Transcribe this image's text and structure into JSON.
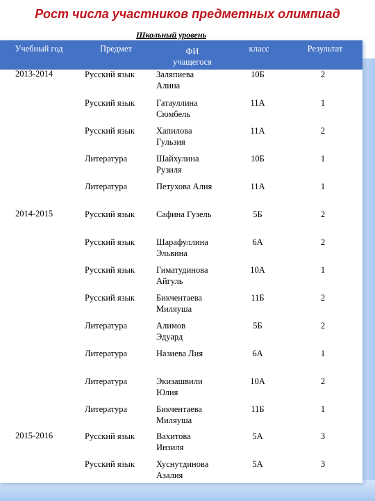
{
  "title": "Рост числа участников предметных олимпиад",
  "subtitle": "Школьный уровень",
  "table": {
    "headers": {
      "year": "Учебный год",
      "subject": "Предмет",
      "name_line1": "ФИ",
      "name_line2": "учащегося",
      "class": "класс",
      "result": "Результат"
    },
    "years": [
      "2013-2014",
      "2014-2015",
      "2015-2016"
    ],
    "rows": [
      {
        "subject": "Русский язык",
        "name1": "Заляпиева",
        "name2": "Алина",
        "class": "10Б",
        "result": "2"
      },
      {
        "subject": "Русский язык",
        "name1": "Гатауллина",
        "name2": "Сюмбель",
        "class": "11А",
        "result": "1"
      },
      {
        "subject": "Русский язык",
        "name1": "Хапилова",
        "name2": "Гульзия",
        "class": "11А",
        "result": "2"
      },
      {
        "subject": "Литература",
        "name1": "Шайхулина",
        "name2": "Рузиля",
        "class": "10Б",
        "result": "1"
      },
      {
        "subject": "Литература",
        "name1": "Петухова Алия",
        "name2": "",
        "class": "11А",
        "result": "1"
      },
      {
        "subject": "Русский язык",
        "name1": "Сафина Гузель",
        "name2": "",
        "class": "5Б",
        "result": "2"
      },
      {
        "subject": "Русский язык",
        "name1": "Шарафуллина",
        "name2": "Эльвина",
        "class": "6А",
        "result": "2"
      },
      {
        "subject": "Русский язык",
        "name1": "Гиматудинова",
        "name2": "Айгуль",
        "class": "10А",
        "result": "1"
      },
      {
        "subject": "Русский язык",
        "name1": "Бикчентаева",
        "name2": "Миляуша",
        "class": "11Б",
        "result": "2"
      },
      {
        "subject": "Литература",
        "name1": "Алимов",
        "name2": "Эдуард",
        "class": "5Б",
        "result": "2"
      },
      {
        "subject": "Литература",
        "name1": "Назиева Лия",
        "name2": "",
        "class": "6А",
        "result": "1"
      },
      {
        "subject": "Литература",
        "name1": "Экизашвили",
        "name2": "Юлия",
        "class": "10А",
        "result": "2"
      },
      {
        "subject": "Литература",
        "name1": "Бикчентаева",
        "name2": "Миляуша",
        "class": "11Б",
        "result": "1"
      },
      {
        "subject": "Русский язык",
        "name1": "Вахитова",
        "name2": "Инзиля",
        "class": "5А",
        "result": "3"
      },
      {
        "subject": "Русский язык",
        "name1": "Хуснутдинова",
        "name2": "Азалия",
        "class": "5А",
        "result": "3"
      }
    ]
  }
}
